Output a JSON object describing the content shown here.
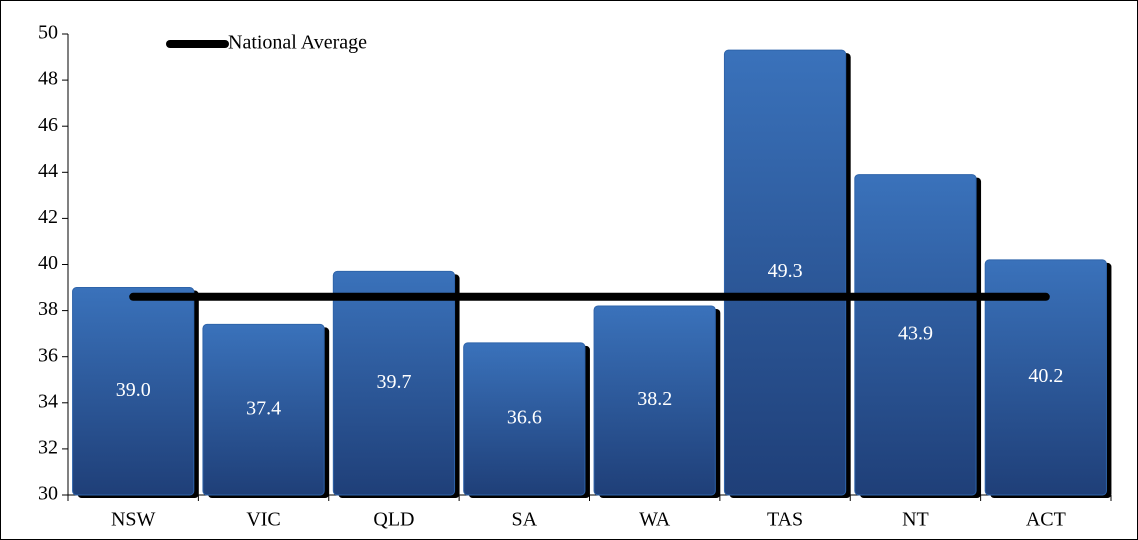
{
  "chart_data": {
    "type": "bar",
    "categories": [
      "NSW",
      "VIC",
      "QLD",
      "SA",
      "WA",
      "TAS",
      "NT",
      "ACT"
    ],
    "values": [
      39.0,
      37.4,
      39.7,
      36.6,
      38.2,
      49.3,
      43.9,
      40.2
    ],
    "value_labels": [
      "39.0",
      "37.4",
      "39.7",
      "36.6",
      "38.2",
      "49.3",
      "43.9",
      "40.2"
    ],
    "color": "#2f64aa",
    "average": {
      "name": "National Average",
      "value": 38.6,
      "color": "#000000"
    },
    "ylim": [
      30,
      50
    ],
    "yticks": [
      30,
      32,
      34,
      36,
      38,
      40,
      42,
      44,
      46,
      48,
      50
    ],
    "legend": "upper left",
    "grid": false
  }
}
